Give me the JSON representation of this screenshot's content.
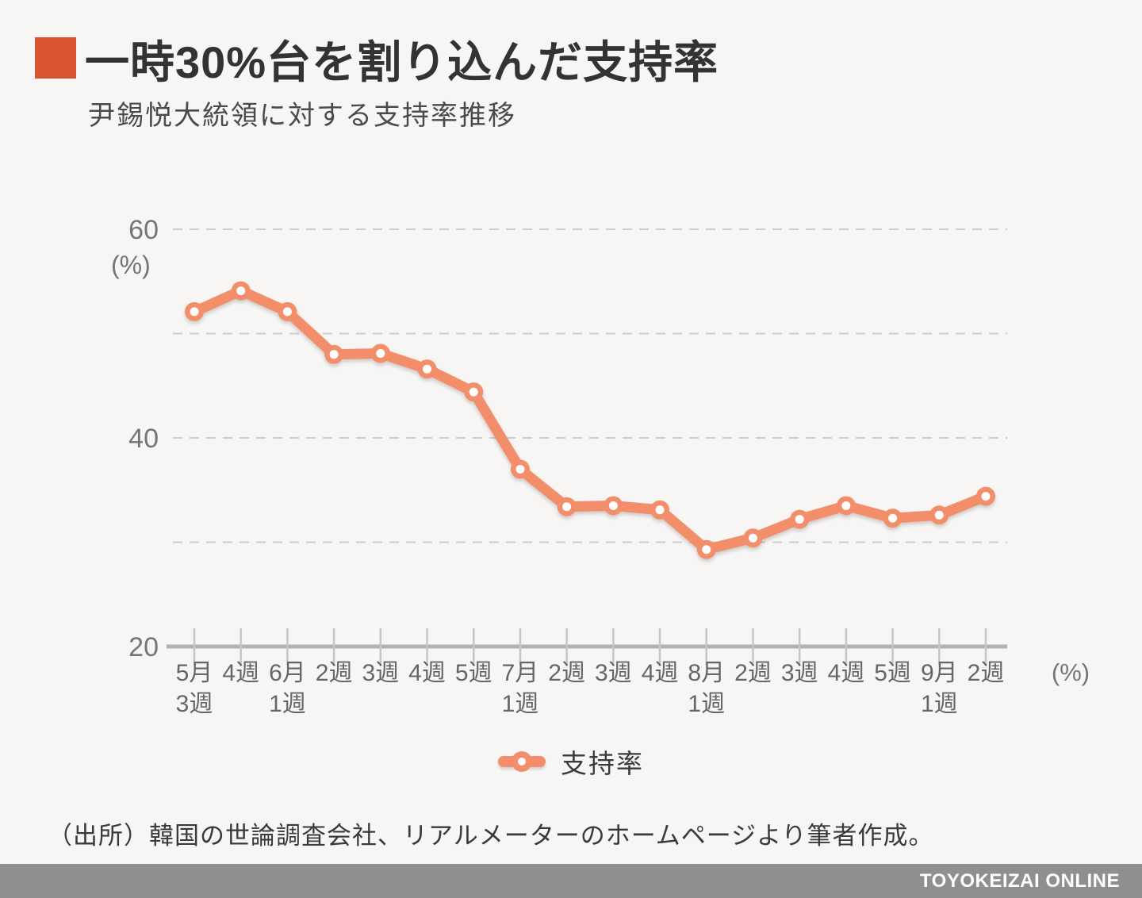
{
  "header": {
    "title": "一時30%台を割り込んだ支持率",
    "subtitle": "尹錫悦大統領に対する支持率推移"
  },
  "chart_data": {
    "type": "line",
    "title": "尹錫悦大統領に対する支持率推移",
    "categories": [
      "5月\n3週",
      "4週",
      "6月\n1週",
      "2週",
      "3週",
      "4週",
      "5週",
      "7月\n1週",
      "2週",
      "3週",
      "4週",
      "8月\n1週",
      "2週",
      "3週",
      "4週",
      "5週",
      "9月\n1週",
      "2週"
    ],
    "series": [
      {
        "name": "支持率",
        "values": [
          52.1,
          54.1,
          52.1,
          48.0,
          48.1,
          46.6,
          44.4,
          37.0,
          33.4,
          33.5,
          33.1,
          29.3,
          30.4,
          32.2,
          33.5,
          32.3,
          32.6,
          34.4
        ]
      }
    ],
    "ylim": [
      20,
      62
    ],
    "yticks": [
      60,
      40,
      20
    ],
    "gridline_values": [
      60,
      50,
      40,
      30
    ],
    "y_axis_unit": "(%)",
    "x_axis_unit": "(%)",
    "grid": true,
    "legend_position": "bottom",
    "point_style": "open-circle"
  },
  "legend": {
    "items": [
      {
        "label": "支持率"
      }
    ]
  },
  "source": "（出所）韓国の世論調査会社、リアルメーターのホームページより筆者作成。",
  "footer": {
    "brand": "TOYOKEIZAI ONLINE"
  },
  "colors": {
    "background": "#f7f6f4",
    "accent": "#d9532e",
    "line": "#f28e6b",
    "grid": "#cdcdcd",
    "axis": "#b2b2b2",
    "tick": "#c6c6c6",
    "y_label": "#757575",
    "x_label": "#666666",
    "footer_bg": "#8f8f8f"
  }
}
